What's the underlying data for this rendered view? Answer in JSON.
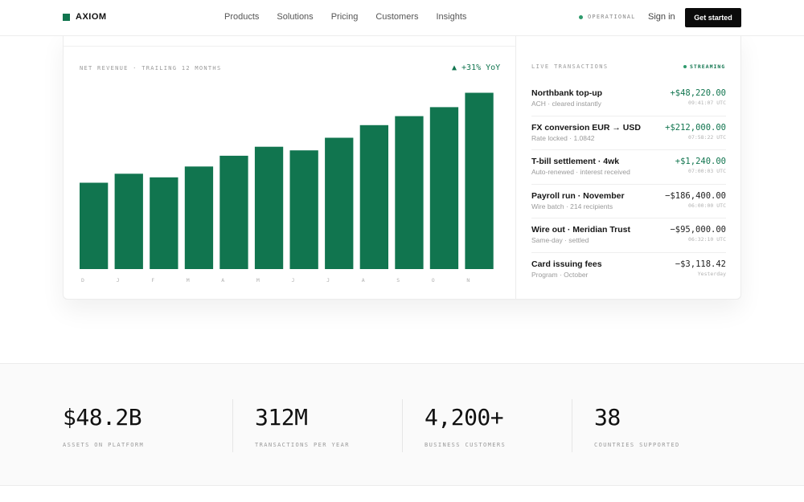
{
  "header": {
    "logo": "AXIOM",
    "nav": [
      "Products",
      "Solutions",
      "Pricing",
      "Customers",
      "Insights"
    ],
    "status": "OPERATIONAL",
    "sign_in": "Sign in",
    "cta": "Get started"
  },
  "colors": {
    "accent": "#11754f",
    "cta_bg": "#0b0b0b"
  },
  "chart_data": {
    "type": "bar",
    "title": "NET REVENUE · TRAILING 12 MONTHS",
    "annotation": "▲ +31% YoY",
    "categories": [
      "D",
      "J",
      "F",
      "M",
      "A",
      "M",
      "J",
      "J",
      "A",
      "S",
      "O",
      "N"
    ],
    "values": [
      48,
      53,
      51,
      57,
      63,
      68,
      66,
      73,
      80,
      85,
      90,
      98
    ],
    "ylim": [
      0,
      100
    ],
    "grid": false,
    "legend": "none"
  },
  "transactions": {
    "title": "LIVE TRANSACTIONS",
    "streaming": "STREAMING",
    "items": [
      {
        "name": "Northbank top-up",
        "sub": "ACH · cleared instantly",
        "amount": "+$48,220.00",
        "time": "09:41:07 UTC",
        "positive": true
      },
      {
        "name": "FX conversion EUR → USD",
        "sub": "Rate locked · 1.0842",
        "amount": "+$212,000.00",
        "time": "07:58:22 UTC",
        "positive": true
      },
      {
        "name": "T-bill settlement · 4wk",
        "sub": "Auto-renewed · interest received",
        "amount": "+$1,240.00",
        "time": "07:00:03 UTC",
        "positive": true
      },
      {
        "name": "Payroll run · November",
        "sub": "Wire batch · 214 recipients",
        "amount": "−$186,400.00",
        "time": "06:00:00 UTC",
        "positive": false
      },
      {
        "name": "Wire out · Meridian Trust",
        "sub": "Same-day · settled",
        "amount": "−$95,000.00",
        "time": "06:32:10 UTC",
        "positive": false
      },
      {
        "name": "Card issuing fees",
        "sub": "Program · October",
        "amount": "−$3,118.42",
        "time": "Yesterday",
        "positive": false
      }
    ]
  },
  "stats": [
    {
      "value": "$48.2B",
      "label": "ASSETS ON PLATFORM"
    },
    {
      "value": "312M",
      "label": "TRANSACTIONS PER YEAR"
    },
    {
      "value": "4,200+",
      "label": "BUSINESS CUSTOMERS"
    },
    {
      "value": "38",
      "label": "COUNTRIES SUPPORTED"
    }
  ]
}
